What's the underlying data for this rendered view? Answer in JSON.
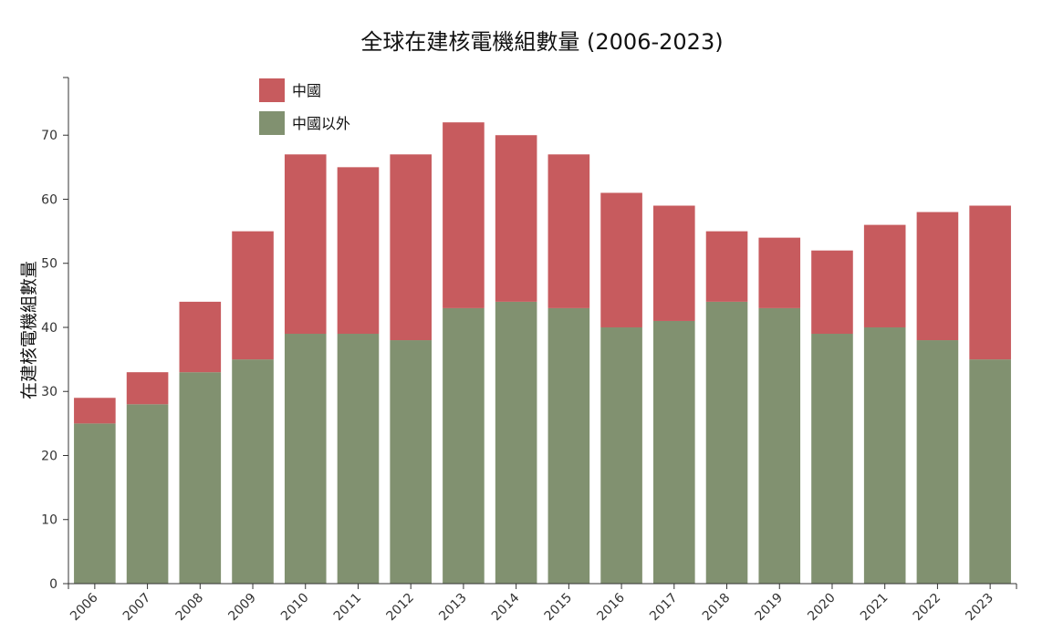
{
  "chart_data": {
    "type": "bar",
    "stacked": true,
    "title": "全球在建核電機組數量 (2006-2023)",
    "xlabel": "",
    "ylabel": "在建核電機組數量",
    "ylim": [
      0,
      79
    ],
    "yticks": [
      0,
      10,
      20,
      30,
      40,
      50,
      60,
      70
    ],
    "categories": [
      "2006",
      "2007",
      "2008",
      "2009",
      "2010",
      "2011",
      "2012",
      "2013",
      "2014",
      "2015",
      "2016",
      "2017",
      "2018",
      "2019",
      "2020",
      "2021",
      "2022",
      "2023"
    ],
    "series": [
      {
        "name": "中國以外",
        "color": "#819170",
        "values": [
          25,
          28,
          33,
          35,
          39,
          39,
          38,
          43,
          44,
          43,
          40,
          41,
          44,
          43,
          39,
          40,
          38,
          35
        ]
      },
      {
        "name": "中國",
        "color": "#c75b5e",
        "values": [
          4,
          5,
          11,
          20,
          28,
          26,
          29,
          29,
          26,
          24,
          21,
          18,
          11,
          11,
          13,
          16,
          20,
          24
        ]
      }
    ],
    "legend": [
      "中國",
      "中國以外"
    ],
    "legend_position": "top-left",
    "grid": false
  }
}
